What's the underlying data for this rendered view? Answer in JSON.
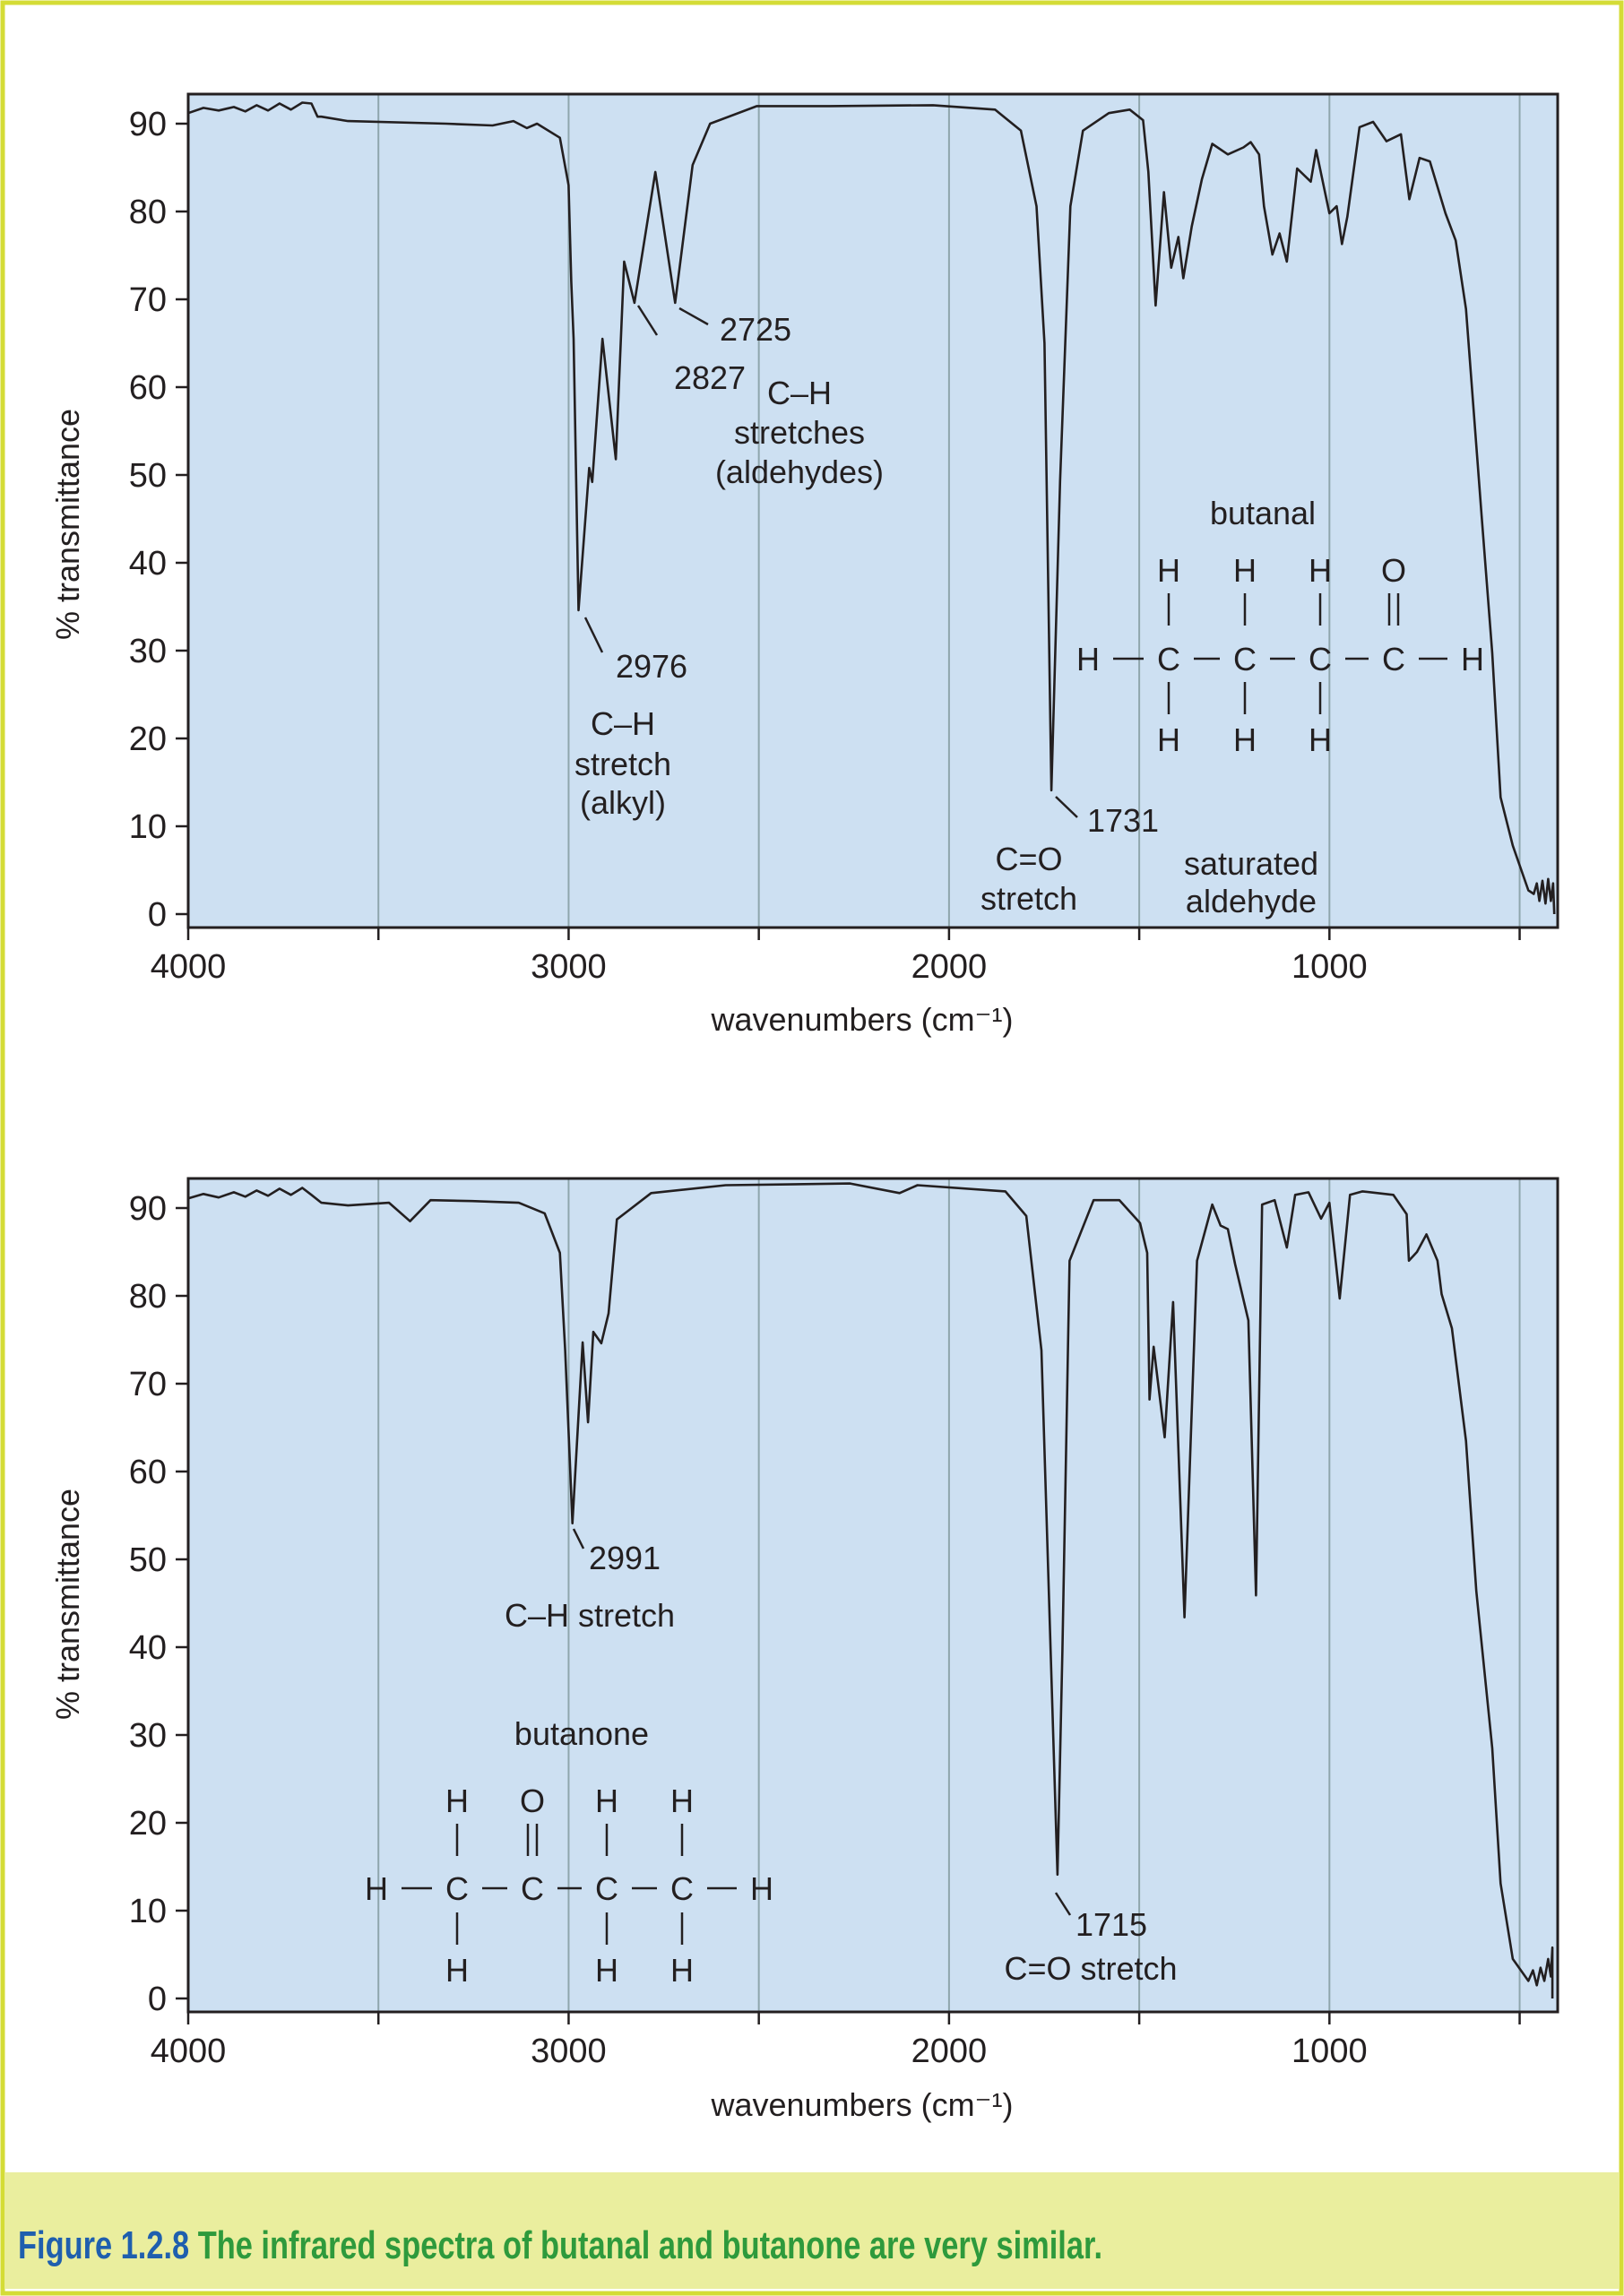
{
  "caption": {
    "label": "Figure 1.2.8",
    "text": " The infrared spectra of butanal and butanone are very similar.",
    "label_color": "#1f5fae",
    "text_color": "#2e9a3c",
    "band_color": "#eaee9e"
  },
  "colors": {
    "plot_bg": "#cde0f2",
    "grid": "#8fa6ad",
    "border": "#d4dc36",
    "line": "#231f20"
  },
  "chart_data": [
    {
      "type": "line",
      "xlabel": "wavenumbers (cm⁻¹)",
      "ylabel": "% transmittance",
      "xlim": [
        4000,
        400
      ],
      "x_reversed": true,
      "ylim": [
        0,
        93
      ],
      "xticks": [
        4000,
        3000,
        2000,
        1000
      ],
      "xgrid": [
        3500,
        3000,
        2500,
        2000,
        1500,
        1000,
        500
      ],
      "yticks": [
        0,
        10,
        20,
        30,
        40,
        50,
        60,
        70,
        80,
        90
      ],
      "grid": "vertical",
      "compound": "butanal",
      "annotations": {
        "peak1": "2976",
        "peak1_desc": [
          "C–H",
          "stretch",
          "(alkyl)"
        ],
        "peak2": "2827",
        "peak3": "2725",
        "peak23_desc": [
          "C–H",
          "stretches",
          "(aldehydes)"
        ],
        "peak4": "1731",
        "peak4_desc": [
          "C=O",
          "stretch"
        ],
        "class_desc": [
          "saturated",
          "aldehyde"
        ]
      },
      "series": [
        {
          "points": [
            [
              4000,
              91.2
            ],
            [
              3960,
              91.8
            ],
            [
              3920,
              91.5
            ],
            [
              3880,
              91.9
            ],
            [
              3850,
              91.4
            ],
            [
              3820,
              92.1
            ],
            [
              3790,
              91.5
            ],
            [
              3760,
              92.3
            ],
            [
              3730,
              91.6
            ],
            [
              3700,
              92.4
            ],
            [
              3676,
              92.3
            ],
            [
              3660,
              90.8
            ],
            [
              3650,
              90.8
            ],
            [
              3580,
              90.3
            ],
            [
              3322,
              90
            ],
            [
              3200,
              89.8
            ],
            [
              3145,
              90.3
            ],
            [
              3110,
              89.5
            ],
            [
              3083,
              90
            ],
            [
              3023,
              88.4
            ],
            [
              3000,
              83
            ],
            [
              2993,
              72
            ],
            [
              2987,
              65.5
            ],
            [
              2974,
              34.6
            ],
            [
              2946,
              50.8
            ],
            [
              2938,
              49.2
            ],
            [
              2911,
              65.5
            ],
            [
              2876,
              51.8
            ],
            [
              2854,
              74.3
            ],
            [
              2827,
              69.6
            ],
            [
              2772,
              84.5
            ],
            [
              2720,
              69.6
            ],
            [
              2674,
              85.3
            ],
            [
              2628,
              90
            ],
            [
              2505,
              92
            ],
            [
              2315,
              92
            ],
            [
              2042,
              92.1
            ],
            [
              1879,
              91.6
            ],
            [
              1811,
              89.2
            ],
            [
              1770,
              80.6
            ],
            [
              1749,
              65
            ],
            [
              1731,
              14.1
            ],
            [
              1708,
              49.3
            ],
            [
              1681,
              80.6
            ],
            [
              1648,
              89.2
            ],
            [
              1580,
              91.2
            ],
            [
              1525,
              91.6
            ],
            [
              1490,
              90.4
            ],
            [
              1476,
              84.5
            ],
            [
              1457,
              69.3
            ],
            [
              1435,
              82.2
            ],
            [
              1416,
              73.6
            ],
            [
              1397,
              77.1
            ],
            [
              1384,
              72.4
            ],
            [
              1362,
              78.3
            ],
            [
              1335,
              83.7
            ],
            [
              1308,
              87.7
            ],
            [
              1267,
              86.5
            ],
            [
              1226,
              87.3
            ],
            [
              1207,
              87.9
            ],
            [
              1185,
              86.5
            ],
            [
              1172,
              80.6
            ],
            [
              1150,
              75.1
            ],
            [
              1131,
              77.5
            ],
            [
              1112,
              74.3
            ],
            [
              1085,
              84.9
            ],
            [
              1049,
              83.4
            ],
            [
              1035,
              87
            ],
            [
              1000,
              79.8
            ],
            [
              981,
              80.6
            ],
            [
              967,
              76.3
            ],
            [
              953,
              79.4
            ],
            [
              921,
              89.6
            ],
            [
              885,
              90.2
            ],
            [
              850,
              88
            ],
            [
              812,
              88.8
            ],
            [
              790,
              81.4
            ],
            [
              763,
              86.1
            ],
            [
              736,
              85.7
            ],
            [
              695,
              79.8
            ],
            [
              668,
              76.7
            ],
            [
              641,
              68.9
            ],
            [
              600,
              45.4
            ],
            [
              572,
              29.7
            ],
            [
              550,
              13.3
            ],
            [
              518,
              7.8
            ],
            [
              477,
              2.7
            ],
            [
              463,
              2.3
            ],
            [
              455,
              3.5
            ],
            [
              448,
              1.5
            ],
            [
              440,
              3.8
            ],
            [
              432,
              1.2
            ],
            [
              425,
              4
            ],
            [
              418,
              1.5
            ],
            [
              412,
              3.5
            ],
            [
              409,
              0
            ]
          ]
        }
      ]
    },
    {
      "type": "line",
      "xlabel": "wavenumbers (cm⁻¹)",
      "ylabel": "% transmittance",
      "xlim": [
        4000,
        400
      ],
      "x_reversed": true,
      "ylim": [
        0,
        93
      ],
      "xticks": [
        4000,
        3000,
        2000,
        1000
      ],
      "xgrid": [
        3500,
        3000,
        2500,
        2000,
        1500,
        1000,
        500
      ],
      "yticks": [
        0,
        10,
        20,
        30,
        40,
        50,
        60,
        70,
        80,
        90
      ],
      "grid": "vertical",
      "compound": "butanone",
      "annotations": {
        "peak1": "2991",
        "peak1_desc": "C–H stretch",
        "peak2": "1715",
        "peak2_desc": "C=O stretch"
      },
      "series": [
        {
          "points": [
            [
              4000,
              91.1
            ],
            [
              3960,
              91.6
            ],
            [
              3920,
              91.2
            ],
            [
              3880,
              91.8
            ],
            [
              3850,
              91.3
            ],
            [
              3820,
              92
            ],
            [
              3790,
              91.4
            ],
            [
              3760,
              92.2
            ],
            [
              3730,
              91.5
            ],
            [
              3700,
              92.3
            ],
            [
              3676,
              91.5
            ],
            [
              3650,
              90.6
            ],
            [
              3580,
              90.3
            ],
            [
              3472,
              90.6
            ],
            [
              3417,
              88.5
            ],
            [
              3363,
              90.9
            ],
            [
              3254,
              90.8
            ],
            [
              3131,
              90.6
            ],
            [
              3063,
              89.4
            ],
            [
              3023,
              84.9
            ],
            [
              3009,
              73.8
            ],
            [
              2990,
              54.1
            ],
            [
              2963,
              74.7
            ],
            [
              2949,
              65.6
            ],
            [
              2935,
              75.9
            ],
            [
              2914,
              74.6
            ],
            [
              2895,
              78
            ],
            [
              2873,
              88.7
            ],
            [
              2846,
              89.6
            ],
            [
              2783,
              91.7
            ],
            [
              2587,
              92.6
            ],
            [
              2260,
              92.8
            ],
            [
              2130,
              91.7
            ],
            [
              2083,
              92.6
            ],
            [
              1852,
              91.9
            ],
            [
              1797,
              89.1
            ],
            [
              1757,
              73.8
            ],
            [
              1715,
              14.1
            ],
            [
              1702,
              39.6
            ],
            [
              1683,
              84
            ],
            [
              1620,
              90.9
            ],
            [
              1552,
              90.9
            ],
            [
              1498,
              88.3
            ],
            [
              1479,
              84.9
            ],
            [
              1473,
              68.2
            ],
            [
              1462,
              74.2
            ],
            [
              1433,
              63.9
            ],
            [
              1411,
              79.3
            ],
            [
              1381,
              43.4
            ],
            [
              1348,
              84
            ],
            [
              1308,
              90.4
            ],
            [
              1286,
              88
            ],
            [
              1267,
              87.6
            ],
            [
              1248,
              83.6
            ],
            [
              1213,
              77.2
            ],
            [
              1193,
              45.9
            ],
            [
              1177,
              90.4
            ],
            [
              1144,
              90.9
            ],
            [
              1112,
              85.5
            ],
            [
              1090,
              91.5
            ],
            [
              1055,
              91.8
            ],
            [
              1022,
              88.8
            ],
            [
              1000,
              90.6
            ],
            [
              973,
              79.7
            ],
            [
              946,
              91.5
            ],
            [
              913,
              91.9
            ],
            [
              832,
              91.5
            ],
            [
              797,
              89.3
            ],
            [
              791,
              84
            ],
            [
              770,
              85
            ],
            [
              745,
              87
            ],
            [
              716,
              84
            ],
            [
              705,
              80.2
            ],
            [
              678,
              76.3
            ],
            [
              641,
              63.5
            ],
            [
              614,
              46.4
            ],
            [
              572,
              28.5
            ],
            [
              550,
              13.1
            ],
            [
              518,
              4.5
            ],
            [
              477,
              2
            ],
            [
              465,
              3.2
            ],
            [
              455,
              1.5
            ],
            [
              445,
              3.5
            ],
            [
              435,
              2
            ],
            [
              425,
              4.5
            ],
            [
              418,
              2.5
            ],
            [
              414,
              5.8
            ],
            [
              414,
              0
            ]
          ]
        }
      ]
    }
  ]
}
